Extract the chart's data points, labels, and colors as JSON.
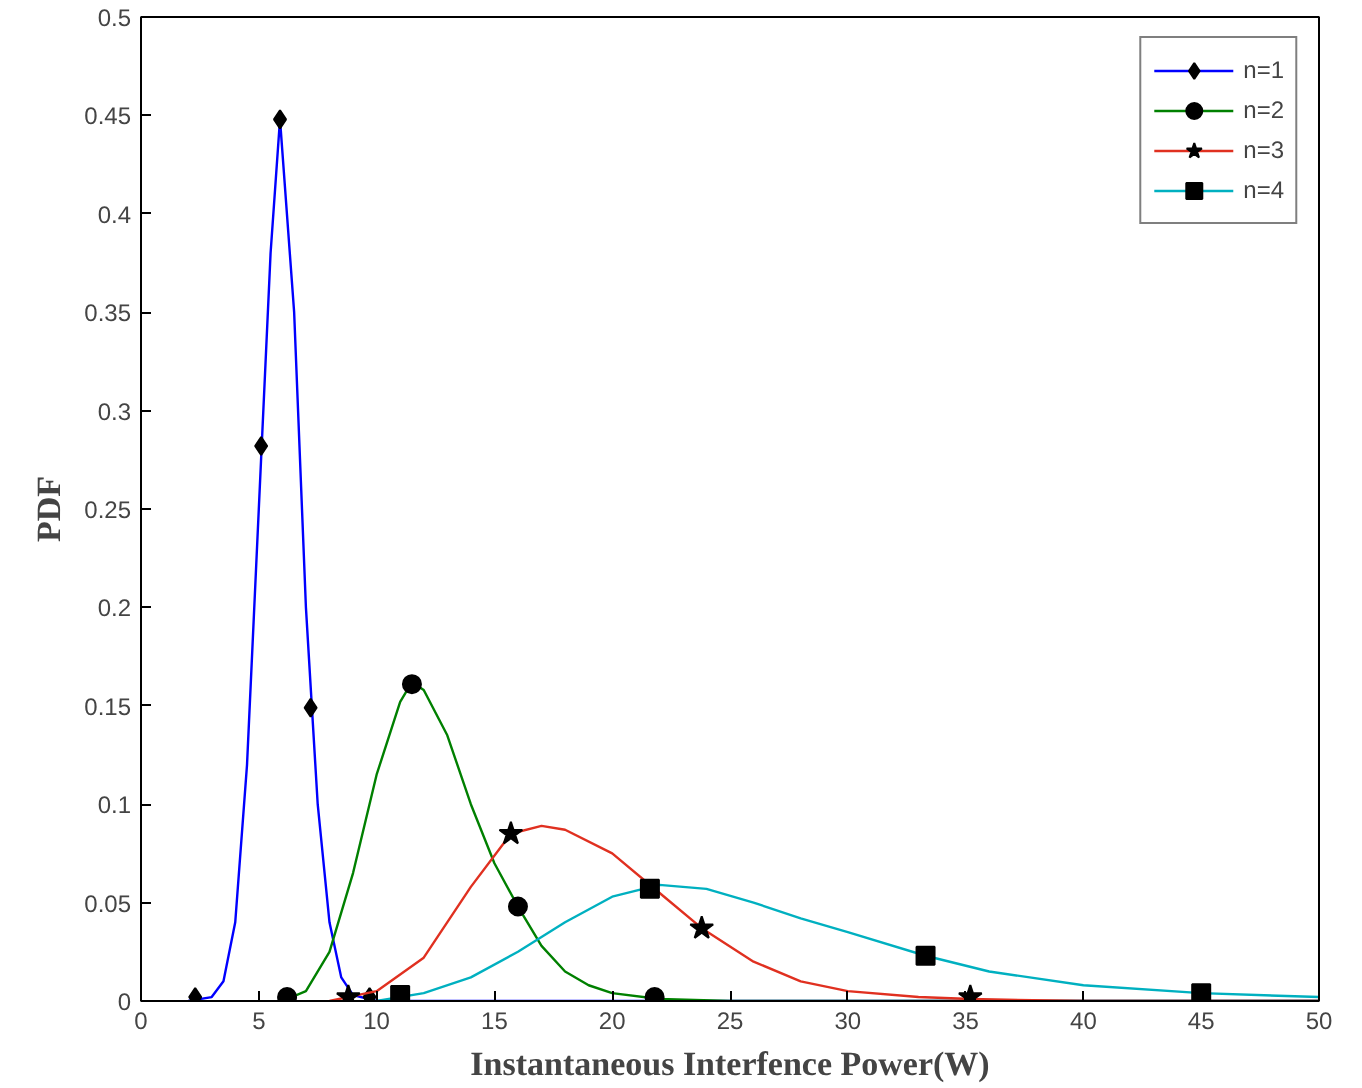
{
  "chart_data": {
    "type": "line",
    "xlabel": "Instantaneous Interfence Power(W)",
    "ylabel": "PDF",
    "xlim": [
      0,
      50
    ],
    "xticks": [
      0,
      5,
      10,
      15,
      20,
      25,
      30,
      35,
      40,
      45,
      50
    ],
    "ylim": [
      0,
      0.5
    ],
    "yticks": [
      0,
      0.05,
      0.1,
      0.15,
      0.2,
      0.25,
      0.3,
      0.35,
      0.4,
      0.45,
      0.5
    ],
    "grid": false,
    "legend": "top right",
    "series": [
      {
        "name": "n=1",
        "color": "#0000ff",
        "line_style": "solid",
        "marker": "none",
        "x": [
          2,
          3,
          3.5,
          4,
          4.5,
          5,
          5.5,
          5.9,
          6.5,
          7,
          7.5,
          8,
          8.5,
          9,
          10,
          50
        ],
        "values": [
          0,
          0.002,
          0.01,
          0.04,
          0.12,
          0.25,
          0.38,
          0.448,
          0.35,
          0.2,
          0.1,
          0.04,
          0.012,
          0.003,
          0,
          0
        ]
      },
      {
        "type": "scatter",
        "color": "#000000",
        "marker": "diamond",
        "x": [
          2.3,
          5.1,
          5.9,
          7.2,
          9.7
        ],
        "values": [
          0.002,
          0.282,
          0.448,
          0.149,
          0.002
        ]
      },
      {
        "name": "n=2",
        "color": "#008000",
        "line_style": "solid",
        "marker": "none",
        "x": [
          6,
          7,
          8,
          9,
          10,
          11,
          11.5,
          12,
          13,
          14,
          15,
          16,
          17,
          18,
          19,
          20,
          22,
          25,
          50
        ],
        "values": [
          0,
          0.005,
          0.025,
          0.065,
          0.115,
          0.152,
          0.162,
          0.158,
          0.135,
          0.1,
          0.07,
          0.048,
          0.028,
          0.015,
          0.008,
          0.004,
          0.001,
          0,
          0
        ]
      },
      {
        "type": "scatter",
        "color": "#000000",
        "marker": "circle",
        "x": [
          6.2,
          11.5,
          16,
          21.8
        ],
        "values": [
          0.002,
          0.161,
          0.048,
          0.002
        ]
      },
      {
        "name": "n=3",
        "color": "#e03020",
        "line_style": "solid",
        "marker": "none",
        "x": [
          8,
          10,
          12,
          14,
          15.7,
          17,
          18,
          20,
          22,
          23.8,
          26,
          28,
          30,
          33,
          35.2,
          40,
          50
        ],
        "values": [
          0,
          0.005,
          0.022,
          0.058,
          0.085,
          0.089,
          0.087,
          0.075,
          0.055,
          0.037,
          0.02,
          0.01,
          0.005,
          0.002,
          0.001,
          0,
          0
        ]
      },
      {
        "type": "scatter",
        "color": "#000000",
        "marker": "star",
        "x": [
          8.8,
          15.7,
          23.8,
          35.2
        ],
        "values": [
          0.002,
          0.085,
          0.037,
          0.002
        ]
      },
      {
        "name": "n=4",
        "color": "#00b0c0",
        "line_style": "solid",
        "marker": "none",
        "x": [
          10,
          12,
          14,
          16,
          18,
          20,
          22,
          24,
          26,
          28,
          30,
          33.3,
          36,
          40,
          45,
          50
        ],
        "values": [
          0,
          0.004,
          0.012,
          0.025,
          0.04,
          0.053,
          0.059,
          0.057,
          0.05,
          0.042,
          0.035,
          0.023,
          0.015,
          0.008,
          0.004,
          0.002
        ]
      },
      {
        "type": "scatter",
        "color": "#000000",
        "marker": "square",
        "x": [
          11,
          21.6,
          33.3,
          45
        ],
        "values": [
          0.003,
          0.057,
          0.023,
          0.004
        ]
      }
    ]
  }
}
